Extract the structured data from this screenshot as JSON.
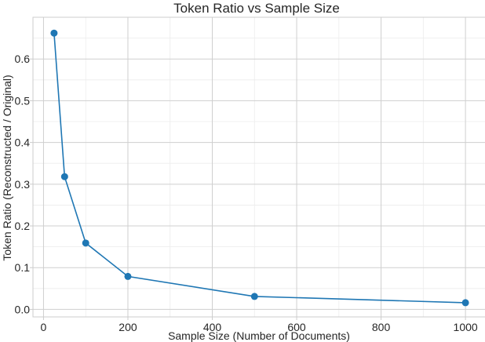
{
  "chart_data": {
    "type": "line",
    "title": "Token Ratio vs Sample Size",
    "xlabel": "Sample Size (Number of Documents)",
    "ylabel": "Token Ratio (Reconstructed / Original)",
    "xlim": [
      -25,
      1050
    ],
    "ylim": [
      -0.018,
      0.7
    ],
    "xticks": [
      0,
      200,
      400,
      600,
      800,
      1000
    ],
    "yticks": [
      0.0,
      0.1,
      0.2,
      0.3,
      0.4,
      0.5,
      0.6
    ],
    "xtick_labels": [
      "0",
      "200",
      "400",
      "600",
      "800",
      "1000"
    ],
    "ytick_labels": [
      "0.0",
      "0.1",
      "0.2",
      "0.3",
      "0.4",
      "0.5",
      "0.6"
    ],
    "grid": true,
    "series": [
      {
        "color": "#1f77b4",
        "x": [
          25,
          50,
          100,
          200,
          500,
          1000
        ],
        "y": [
          0.662,
          0.318,
          0.159,
          0.079,
          0.031,
          0.016
        ]
      }
    ]
  }
}
